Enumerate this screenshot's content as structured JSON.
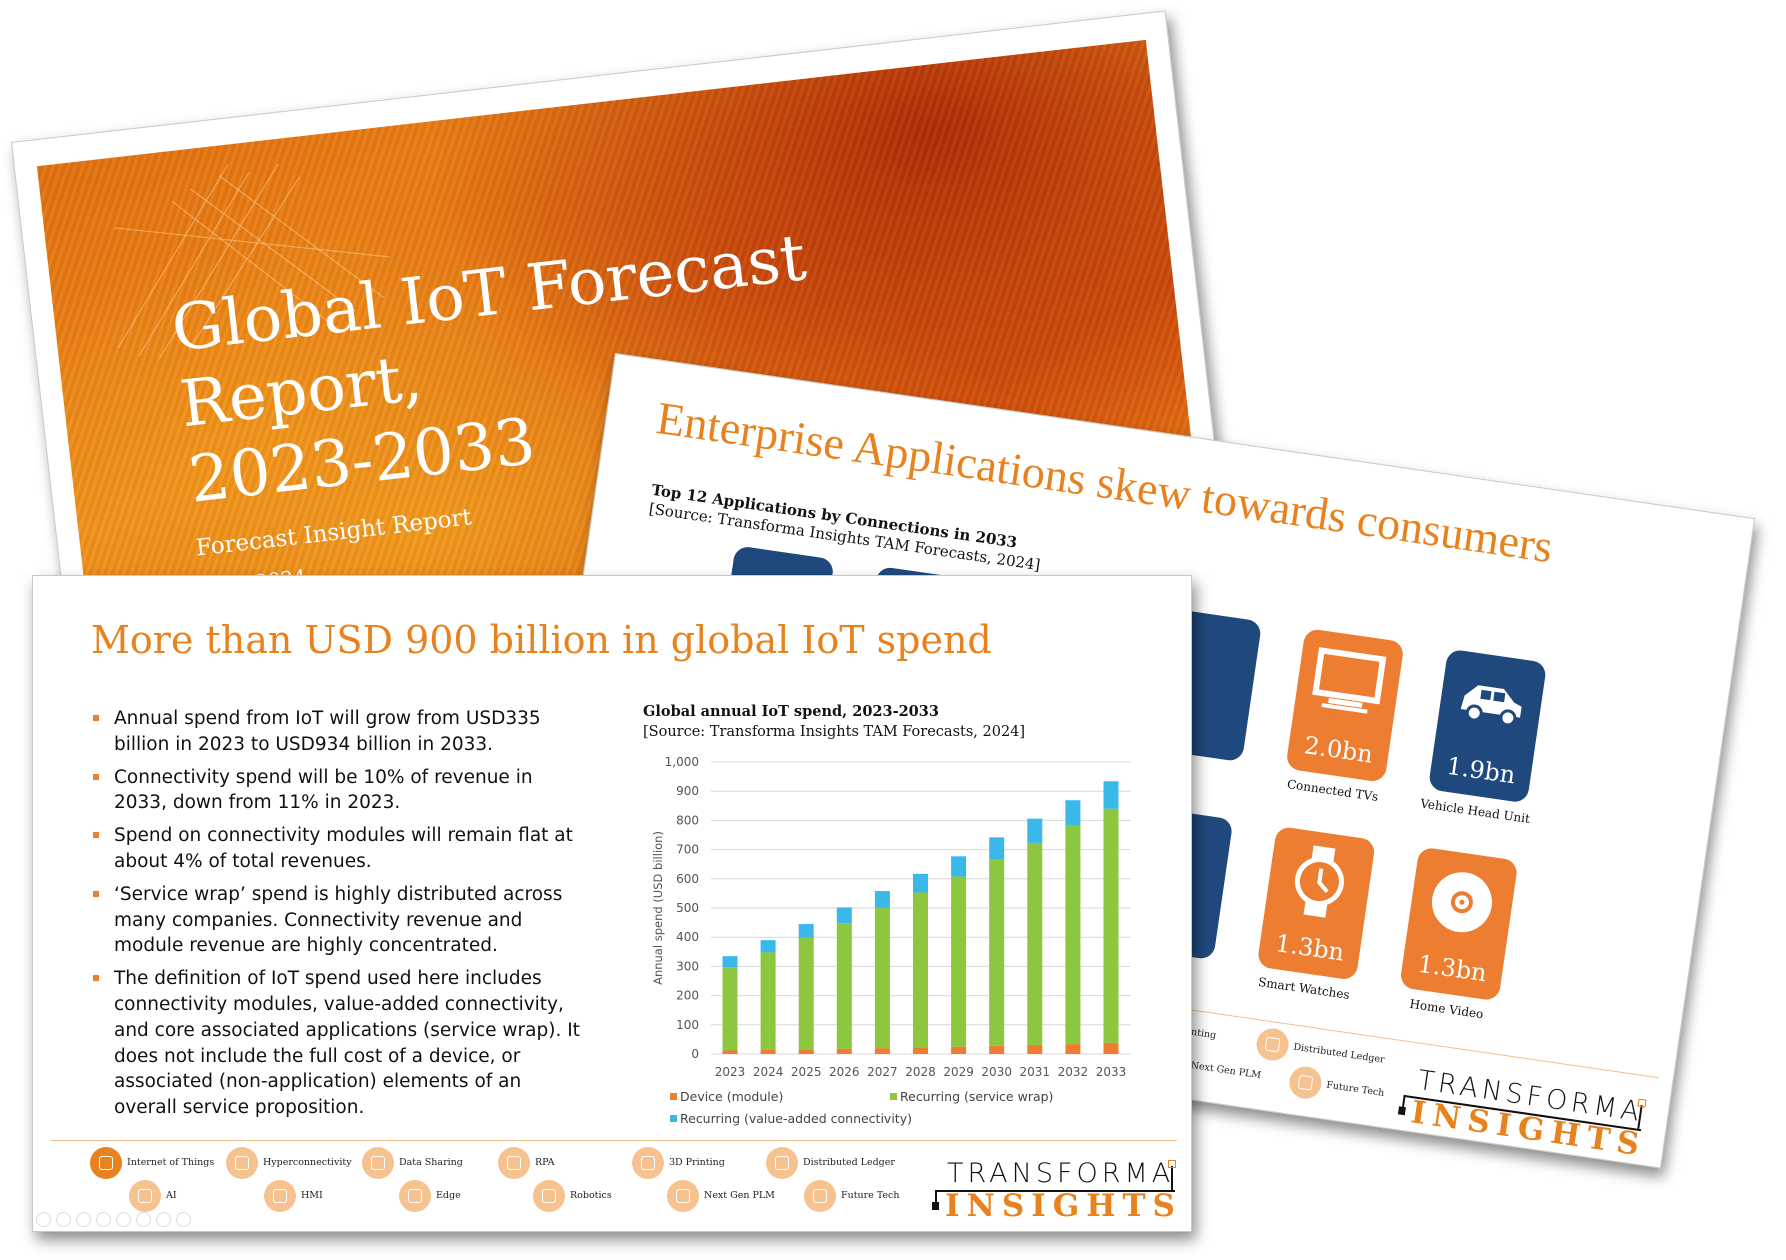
{
  "cover": {
    "title_line1": "Global IoT Forecast",
    "title_line2": "Report, 2023-2033",
    "subtitle": "Forecast Insight Report",
    "date": "2024"
  },
  "apps_slide": {
    "title": "Enterprise Applications skew towards consumers",
    "chart_title": "Top 12 Applications by Connections in 2033",
    "source": "[Source: Transforma Insights TAM Forecasts, 2024]",
    "tiles": [
      {
        "label": "Connected TVs",
        "value": "2.0bn",
        "color": "#ED7D31",
        "icon": "tv-icon"
      },
      {
        "label": "Vehicle Head Unit",
        "value": "1.9bn",
        "color": "#1F497D",
        "icon": "car-icon"
      },
      {
        "label": "Smart Watches",
        "value": "1.3bn",
        "color": "#ED7D31",
        "icon": "watch-icon"
      },
      {
        "label": "Home Video",
        "value": "1.3bn",
        "color": "#ED7D31",
        "icon": "disc-icon"
      }
    ]
  },
  "front_slide": {
    "title": "More than USD 900 billion in global IoT spend",
    "bullets": [
      "Annual spend from IoT will grow from USD335 billion in 2023 to USD934 billion in 2033.",
      "Connectivity spend will be 10% of revenue in 2033, down from 11% in 2023.",
      "Spend on connectivity modules will remain flat at about 4% of total revenues.",
      "‘Service wrap’ spend is highly distributed across many companies. Connectivity revenue and module revenue are highly concentrated.",
      "The definition of IoT spend used here includes connectivity modules, value-added connectivity, and core associated applications (service wrap). It does not include the full cost of a device, or associated (non-application) elements of an overall service proposition."
    ]
  },
  "footer": {
    "topics": [
      {
        "label": "Internet of Things",
        "active": true
      },
      {
        "label": "Hyperconnectivity"
      },
      {
        "label": "Data Sharing"
      },
      {
        "label": "RPA"
      },
      {
        "label": "3D Printing"
      },
      {
        "label": "Distributed Ledger"
      },
      {
        "label": "AI"
      },
      {
        "label": "HMI"
      },
      {
        "label": "Edge"
      },
      {
        "label": "Robotics"
      },
      {
        "label": "Next Gen PLM"
      },
      {
        "label": "Future Tech"
      }
    ],
    "logo_top": "TRANSFORMA",
    "logo_bottom": "INSIGHTS"
  },
  "colors": {
    "accent": "#E8821E",
    "navy": "#1F497D"
  },
  "chart_data": {
    "type": "bar",
    "stacked": true,
    "title": "Global annual IoT spend, 2023-2033",
    "subtitle": "[Source: Transforma Insights TAM Forecasts, 2024]",
    "xlabel": "",
    "ylabel": "Annual spend (USD billion)",
    "ylim": [
      0,
      1000
    ],
    "yticks": [
      "0",
      "100",
      "200",
      "300",
      "400",
      "500",
      "600",
      "700",
      "800",
      "900",
      "1,000"
    ],
    "grid": true,
    "legend": "bottom",
    "categories": [
      "2023",
      "2024",
      "2025",
      "2026",
      "2027",
      "2028",
      "2029",
      "2030",
      "2031",
      "2032",
      "2033"
    ],
    "series": [
      {
        "name": "Device (module)",
        "color": "#EE7D31",
        "values": [
          12,
          14,
          16,
          18,
          20,
          23,
          25,
          28,
          31,
          34,
          38
        ]
      },
      {
        "name": "Recurring (service wrap)",
        "color": "#8DC63F",
        "values": [
          285,
          334,
          382,
          430,
          480,
          530,
          583,
          637,
          692,
          748,
          802
        ]
      },
      {
        "name": "Recurring (value-added connectivity)",
        "color": "#3BB8EA",
        "values": [
          38,
          42,
          47,
          54,
          58,
          64,
          69,
          77,
          83,
          87,
          94
        ]
      }
    ]
  }
}
